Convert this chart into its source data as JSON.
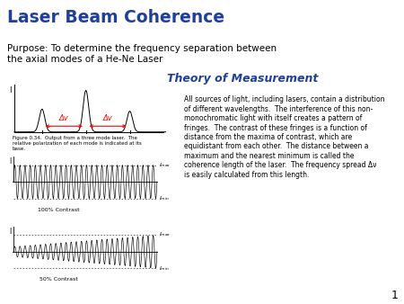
{
  "title": "Laser Beam Coherence",
  "title_color": "#1F3F99",
  "purpose_text": "Purpose: To determine the frequency separation between\nthe axial modes of a He-Ne Laser",
  "theory_title": "Theory of Measurement",
  "theory_title_color": "#1F3F99",
  "body_text": "All sources of light, including lasers, contain a distribution\nof different wavelengths.  The interference of this non-\nmonochromatic light with itself creates a pattern of\nfringes.  The contrast of these fringes is a function of\ndistance from the maxima of contrast, which are\nequidistant from each other.  The distance between a\nmaximum and the nearest minimum is called the\ncoherence length of the laser.  The frequency spread Δν\nis easily calculated from this length.",
  "figure_caption": "Figure 0.34.  Output from a three mode laser.  The\nrelative polarization of each mode is indicated at its\nbase.",
  "label_100": "100% Contrast",
  "label_50": "50% Contrast",
  "delta_nu": "Δv",
  "background_color": "#FFFFFF",
  "slide_number": "1"
}
